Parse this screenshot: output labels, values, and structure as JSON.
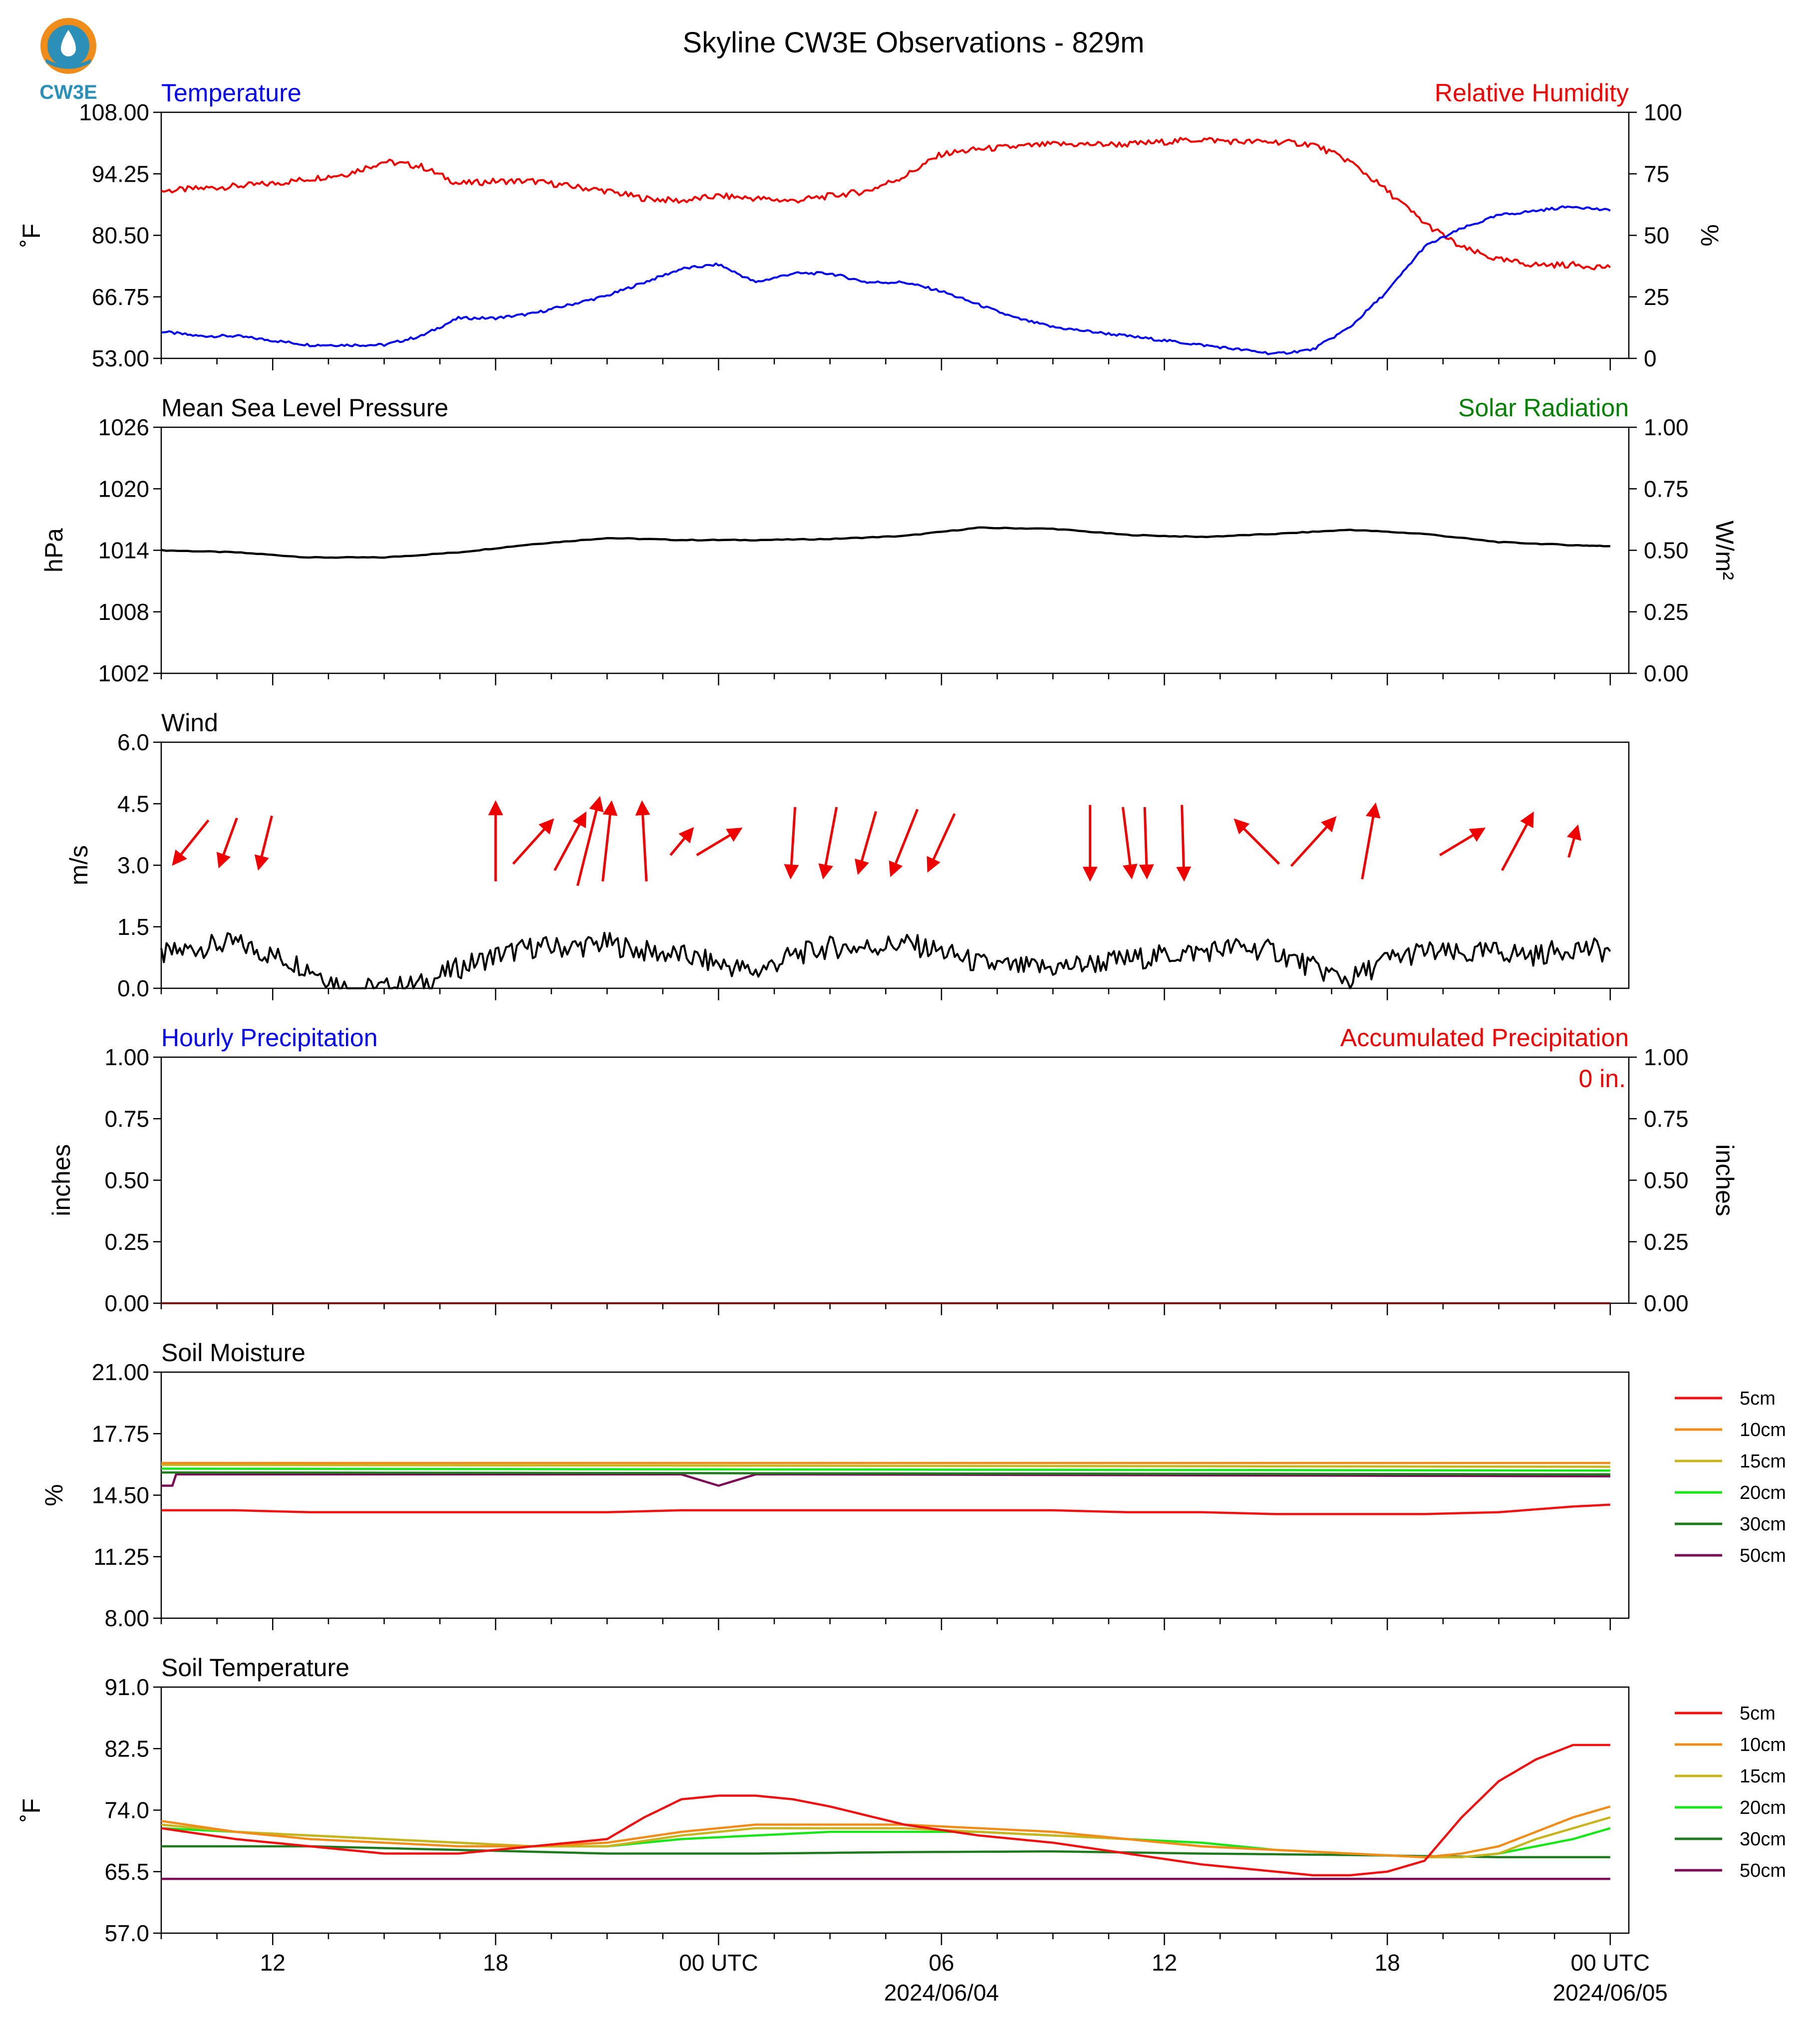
{
  "logo_text": "CW3E",
  "title": "Skyline CW3E Observations - 829m",
  "x_axis": {
    "tick_labels": [
      "12",
      "18",
      "00 UTC",
      "06",
      "12",
      "18",
      "00 UTC"
    ],
    "date_labels": [
      "2024/06/04",
      "2024/06/05"
    ]
  },
  "legend_labels": [
    "5cm",
    "10cm",
    "15cm",
    "20cm",
    "30cm",
    "50cm"
  ],
  "colors": {
    "temp": "#0000ee",
    "rh": "#ee0000",
    "solar": "#008000",
    "black": "#000000",
    "5cm": "#ee1111",
    "10cm": "#f08c1a",
    "15cm": "#c8b41e",
    "20cm": "#19e619",
    "30cm": "#1f7a1f",
    "50cm": "#7a0a55"
  },
  "panels": {
    "temp_rh": {
      "left_title": "Temperature",
      "right_title": "Relative Humidity",
      "left_unit": "˚F",
      "right_unit": "%",
      "left_ticks": [
        "108.00",
        "94.25",
        "80.50",
        "66.75",
        "53.00"
      ],
      "right_ticks": [
        "100",
        "75",
        "50",
        "25",
        "0"
      ]
    },
    "pressure": {
      "left_title": "Mean Sea Level Pressure",
      "right_title": "Solar Radiation",
      "left_unit": "hPa",
      "right_unit": "W/m²",
      "left_ticks": [
        "1026",
        "1020",
        "1014",
        "1008",
        "1002"
      ],
      "right_ticks": [
        "1.00",
        "0.75",
        "0.50",
        "0.25",
        "0.00"
      ]
    },
    "wind": {
      "left_title": "Wind",
      "left_unit": "m/s",
      "left_ticks": [
        "6.0",
        "4.5",
        "3.0",
        "1.5",
        "0.0"
      ]
    },
    "precip": {
      "left_title": "Hourly Precipitation",
      "right_title": "Accumulated Precipitation",
      "left_unit": "inches",
      "right_unit": "inches",
      "total": "0 in.",
      "left_ticks": [
        "1.00",
        "0.75",
        "0.50",
        "0.25",
        "0.00"
      ],
      "right_ticks": [
        "1.00",
        "0.75",
        "0.50",
        "0.25",
        "0.00"
      ]
    },
    "soil_moist": {
      "left_title": "Soil Moisture",
      "left_unit": "%",
      "left_ticks": [
        "21.00",
        "17.75",
        "14.50",
        "11.25",
        "8.00"
      ]
    },
    "soil_temp": {
      "left_title": "Soil Temperature",
      "left_unit": "˚F",
      "left_ticks": [
        "91.0",
        "82.5",
        "74.0",
        "65.5",
        "57.0"
      ]
    }
  },
  "chart_data": [
    {
      "type": "line",
      "title": "Temperature / Relative Humidity",
      "x_unit": "hours after 2024-06-03 09:00 UTC",
      "ylim_left": [
        53,
        108
      ],
      "ylim_right": [
        0,
        100
      ],
      "series": [
        {
          "name": "Temperature",
          "axis": "left",
          "x": [
            0,
            1,
            2,
            3,
            4,
            5,
            6,
            7,
            8,
            9,
            10,
            11,
            12,
            13,
            14,
            15,
            16,
            17,
            18,
            19,
            20,
            21,
            22,
            23,
            24,
            25,
            26,
            27,
            28,
            29,
            30,
            31,
            32,
            33,
            34,
            35,
            36,
            37,
            38,
            39
          ],
          "y": [
            59,
            58,
            58,
            57,
            56,
            56,
            56,
            58,
            62,
            62,
            63,
            65,
            67,
            70,
            73,
            74,
            70,
            72,
            72,
            70,
            70,
            68,
            65,
            62,
            60,
            59,
            58,
            57,
            56,
            55,
            54,
            55,
            60,
            68,
            78,
            82,
            85,
            86,
            87,
            86
          ]
        },
        {
          "name": "Relative Humidity",
          "axis": "right",
          "x": [
            0,
            1,
            2,
            3,
            4,
            5,
            6,
            7,
            8,
            9,
            10,
            11,
            12,
            13,
            14,
            15,
            16,
            17,
            18,
            19,
            20,
            21,
            22,
            23,
            24,
            25,
            26,
            27,
            28,
            29,
            30,
            31,
            32,
            33,
            34,
            35,
            36,
            37,
            38,
            39
          ],
          "y": [
            68,
            69,
            70,
            71,
            73,
            75,
            80,
            78,
            71,
            72,
            72,
            70,
            68,
            65,
            64,
            66,
            65,
            64,
            66,
            68,
            74,
            83,
            85,
            86,
            87,
            87,
            87,
            88,
            89,
            88,
            88,
            87,
            80,
            68,
            55,
            45,
            40,
            38,
            38,
            37
          ]
        }
      ]
    },
    {
      "type": "line",
      "title": "Mean Sea Level Pressure",
      "ylim": [
        1002,
        1026
      ],
      "series": [
        {
          "name": "Mean Sea Level Pressure",
          "x": [
            0,
            2,
            4,
            6,
            8,
            10,
            12,
            14,
            16,
            18,
            20,
            22,
            24,
            26,
            28,
            30,
            32,
            34,
            36,
            38,
            39
          ],
          "y": [
            1014,
            1013.8,
            1013.3,
            1013.3,
            1013.8,
            1014.6,
            1015.2,
            1015,
            1015,
            1015.1,
            1015.4,
            1016.2,
            1016.1,
            1015.5,
            1015.3,
            1015.6,
            1016,
            1015.6,
            1014.8,
            1014.5,
            1014.4
          ]
        }
      ]
    },
    {
      "type": "line",
      "title": "Wind",
      "ylim": [
        0,
        6
      ],
      "series": [
        {
          "name": "Wind speed",
          "x": [
            0,
            1,
            2,
            3,
            4,
            5,
            6,
            7,
            8,
            9,
            10,
            11,
            12,
            13,
            14,
            15,
            16,
            17,
            18,
            19,
            20,
            21,
            22,
            23,
            24,
            25,
            26,
            27,
            28,
            29,
            30,
            31,
            32,
            33,
            34,
            35,
            36,
            37,
            38,
            39
          ],
          "y": [
            0.8,
            1.0,
            1.1,
            0.8,
            0.5,
            0.0,
            0.0,
            0.1,
            0.5,
            0.8,
            1.0,
            1.0,
            1.1,
            0.9,
            0.8,
            0.6,
            0.4,
            0.8,
            1.0,
            1.0,
            1.1,
            0.9,
            0.6,
            0.5,
            0.5,
            0.6,
            0.7,
            0.8,
            0.9,
            1.0,
            0.9,
            0.5,
            0.2,
            0.7,
            0.9,
            0.8,
            0.9,
            0.8,
            1.0,
            0.9
          ]
        }
      ],
      "arrows": {
        "x": [
          0.8,
          1.8,
          2.8,
          9.0,
          10.0,
          11.0,
          11.5,
          12.0,
          13.0,
          14.0,
          15.0,
          17.0,
          18.0,
          19.0,
          20.0,
          21.0,
          25.0,
          26.0,
          26.5,
          27.5,
          29.5,
          31.0,
          32.5,
          35.0,
          36.5,
          38.0
        ],
        "u": [
          -0.8,
          -0.4,
          -0.3,
          0.0,
          0.9,
          0.7,
          0.5,
          0.2,
          -0.1,
          0.5,
          1.0,
          -0.1,
          -0.3,
          -0.4,
          -0.6,
          -0.6,
          0.0,
          0.2,
          0.05,
          0.05,
          -1.0,
          1.0,
          0.3,
          1.0,
          0.7,
          0.2
        ],
        "v": [
          -1.0,
          -1.1,
          -1.2,
          1.8,
          1.0,
          1.3,
          2.0,
          1.8,
          1.8,
          0.6,
          0.6,
          -1.6,
          -1.6,
          -1.4,
          -1.5,
          -1.3,
          -1.7,
          -1.6,
          -1.6,
          -1.7,
          1.0,
          1.1,
          1.7,
          0.6,
          1.3,
          0.7
        ]
      }
    },
    {
      "type": "line",
      "title": "Hourly Precipitation / Accumulated Precipitation",
      "ylim_left": [
        0,
        1
      ],
      "ylim_right": [
        0,
        1
      ],
      "series": [
        {
          "name": "Hourly Precipitation",
          "x": [
            0,
            39
          ],
          "y": [
            0,
            0
          ]
        },
        {
          "name": "Accumulated Precipitation",
          "x": [
            0,
            39
          ],
          "y": [
            0,
            0
          ]
        }
      ]
    },
    {
      "type": "line",
      "title": "Soil Moisture",
      "ylim": [
        8,
        21
      ],
      "series": [
        {
          "name": "5cm",
          "x": [
            0,
            2,
            4,
            6,
            8,
            10,
            12,
            14,
            16,
            18,
            20,
            22,
            24,
            26,
            28,
            30,
            32,
            34,
            36,
            38,
            39
          ],
          "y": [
            13.7,
            13.7,
            13.6,
            13.6,
            13.6,
            13.6,
            13.6,
            13.7,
            13.7,
            13.7,
            13.7,
            13.7,
            13.7,
            13.6,
            13.6,
            13.5,
            13.5,
            13.5,
            13.6,
            13.9,
            14.0
          ]
        },
        {
          "name": "10cm",
          "x": [
            0,
            39
          ],
          "y": [
            16.2,
            16.2
          ]
        },
        {
          "name": "15cm",
          "x": [
            0,
            39
          ],
          "y": [
            16.1,
            16.0
          ]
        },
        {
          "name": "20cm",
          "x": [
            0,
            39
          ],
          "y": [
            15.9,
            15.8
          ]
        },
        {
          "name": "30cm",
          "x": [
            0,
            39
          ],
          "y": [
            15.7,
            15.6
          ]
        },
        {
          "name": "50cm",
          "x": [
            0,
            0.3,
            0.4,
            14,
            15,
            16,
            17,
            39
          ],
          "y": [
            15.0,
            15.0,
            15.6,
            15.6,
            15.0,
            15.6,
            15.6,
            15.5
          ]
        }
      ]
    },
    {
      "type": "line",
      "title": "Soil Temperature",
      "ylim": [
        57,
        91
      ],
      "series": [
        {
          "name": "5cm",
          "x": [
            0,
            2,
            4,
            6,
            8,
            10,
            12,
            13,
            14,
            15,
            16,
            17,
            18,
            20,
            22,
            24,
            26,
            28,
            30,
            31,
            32,
            33,
            34,
            35,
            36,
            37,
            38,
            39
          ],
          "y": [
            71.5,
            70,
            69,
            68,
            68,
            69,
            70,
            73,
            75.5,
            76,
            76,
            75.5,
            74.5,
            72,
            70.5,
            69.5,
            68,
            66.5,
            65.5,
            65,
            65,
            65.5,
            67,
            73,
            78,
            81,
            83,
            83
          ]
        },
        {
          "name": "10cm",
          "x": [
            0,
            2,
            4,
            6,
            8,
            10,
            12,
            14,
            16,
            18,
            20,
            22,
            24,
            26,
            28,
            30,
            32,
            34,
            35,
            36,
            37,
            38,
            39
          ],
          "y": [
            72.5,
            71,
            70,
            69.5,
            69,
            69,
            69.5,
            71,
            72,
            72,
            72,
            71.5,
            71,
            70,
            69,
            68.5,
            68,
            67.5,
            68,
            69,
            71,
            73,
            74.5
          ]
        },
        {
          "name": "15cm",
          "x": [
            0,
            2,
            4,
            6,
            8,
            10,
            12,
            14,
            16,
            18,
            20,
            22,
            24,
            26,
            28,
            30,
            32,
            34,
            35,
            36,
            37,
            38,
            39
          ],
          "y": [
            72,
            71,
            70.5,
            70,
            69.5,
            69,
            69,
            70.5,
            71.5,
            71.5,
            71.5,
            71,
            70.5,
            70,
            69,
            68.5,
            68,
            67.5,
            67.5,
            68,
            70,
            71.5,
            73
          ]
        },
        {
          "name": "20cm",
          "x": [
            0,
            2,
            4,
            6,
            8,
            10,
            12,
            14,
            16,
            18,
            20,
            22,
            24,
            26,
            28,
            30,
            32,
            34,
            35,
            36,
            37,
            38,
            39
          ],
          "y": [
            71.5,
            71,
            70.5,
            70,
            69.5,
            69,
            69,
            70,
            70.5,
            71,
            71,
            71,
            70.5,
            70,
            69.5,
            68.5,
            68,
            67.5,
            67.5,
            68,
            69,
            70,
            71.5
          ]
        },
        {
          "name": "30cm",
          "x": [
            0,
            4,
            8,
            12,
            16,
            20,
            24,
            28,
            32,
            36,
            39
          ],
          "y": [
            69,
            69,
            68.5,
            68,
            68,
            68.2,
            68.3,
            68,
            67.8,
            67.5,
            67.5
          ]
        },
        {
          "name": "50cm",
          "x": [
            0,
            39
          ],
          "y": [
            64.5,
            64.5
          ]
        }
      ]
    }
  ]
}
